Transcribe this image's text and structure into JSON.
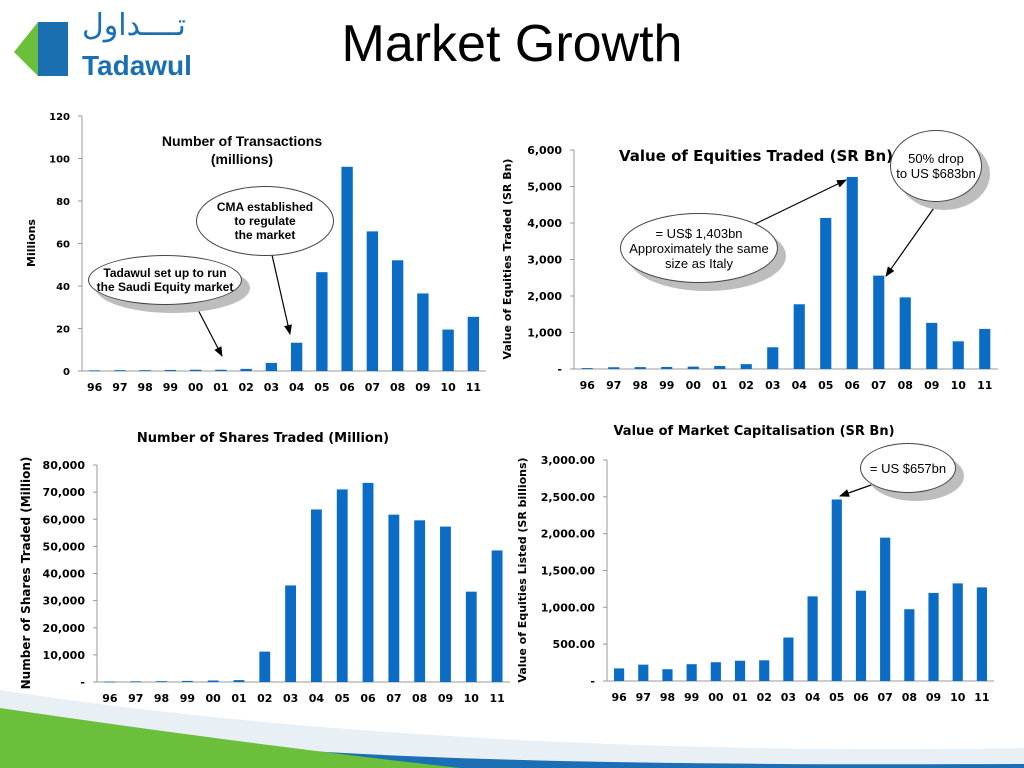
{
  "page_title": "Market Growth",
  "logo": {
    "arabic": "تــــداول",
    "latin": "Tadawul",
    "icon": "tadawul-mark-icon"
  },
  "colors": {
    "bar": "#0a6cc4",
    "axis": "#999999",
    "brand_blue": "#1a6fb0",
    "brand_green": "#6cbf3a",
    "footer_blue": "#1c6fb5"
  },
  "callouts": {
    "tadawul": "Tadawul set up to run\nthe Saudi Equity market",
    "cma": "CMA established\nto regulate\nthe market",
    "italy": "= US$ 1,403bn\nApproximately the same\nsize as Italy",
    "drop": "50% drop\nto US $683bn",
    "cap": "= US $657bn"
  },
  "chart_data": [
    {
      "type": "bar",
      "title": "Number of Transactions\n(millions)",
      "xlabel": "",
      "ylabel": "Millions",
      "categories": [
        "96",
        "97",
        "98",
        "99",
        "00",
        "01",
        "02",
        "03",
        "04",
        "05",
        "06",
        "07",
        "08",
        "09",
        "10",
        "11"
      ],
      "values": [
        0.3,
        0.4,
        0.4,
        0.5,
        0.6,
        0.6,
        1.0,
        3.8,
        13.3,
        46.5,
        96.1,
        65.7,
        52.1,
        36.5,
        19.5,
        25.5
      ],
      "ylim": [
        0,
        120
      ],
      "yticks": [
        0,
        20,
        40,
        60,
        80,
        100,
        120
      ],
      "ytick_labels": [
        "0",
        "20",
        "40",
        "60",
        "80",
        "100",
        "120"
      ],
      "grid": false,
      "legend": "none"
    },
    {
      "type": "bar",
      "title": "Value of Equities Traded (SR Bn)",
      "xlabel": "",
      "ylabel": "Value of Equities Traded (SR Bn)",
      "categories": [
        "96",
        "97",
        "98",
        "99",
        "00",
        "01",
        "02",
        "03",
        "04",
        "05",
        "06",
        "07",
        "08",
        "09",
        "10",
        "11"
      ],
      "values": [
        25,
        48,
        52,
        57,
        65,
        83,
        133,
        596,
        1774,
        4139,
        5262,
        2558,
        1963,
        1264,
        759,
        1099
      ],
      "ylim": [
        0,
        6000
      ],
      "yticks": [
        0,
        1000,
        2000,
        3000,
        4000,
        5000,
        6000
      ],
      "ytick_labels": [
        "-",
        "1,000",
        "2,000",
        "3,000",
        "4,000",
        "5,000",
        "6,000"
      ],
      "grid": false,
      "legend": "none"
    },
    {
      "type": "bar",
      "title": "Number of Shares Traded (Million)",
      "xlabel": "",
      "ylabel": "Number of Shares Traded (Million)",
      "categories": [
        "96",
        "97",
        "98",
        "99",
        "00",
        "01",
        "02",
        "03",
        "04",
        "05",
        "06",
        "07",
        "08",
        "09",
        "10",
        "11"
      ],
      "values": [
        150,
        250,
        300,
        400,
        550,
        700,
        11200,
        35600,
        63600,
        71000,
        73400,
        61700,
        59600,
        57300,
        33300,
        48500
      ],
      "ylim": [
        0,
        80000
      ],
      "yticks": [
        0,
        10000,
        20000,
        30000,
        40000,
        50000,
        60000,
        70000,
        80000
      ],
      "ytick_labels": [
        "-",
        "10,000",
        "20,000",
        "30,000",
        "40,000",
        "50,000",
        "60,000",
        "70,000",
        "80,000"
      ],
      "grid": false,
      "legend": "none"
    },
    {
      "type": "bar",
      "title": "Value of Market Capitalisation (SR Bn)",
      "xlabel": "",
      "ylabel": "Value of Equities Listed (SR billions)",
      "categories": [
        "96",
        "97",
        "98",
        "99",
        "00",
        "01",
        "02",
        "03",
        "04",
        "05",
        "06",
        "07",
        "08",
        "09",
        "10",
        "11"
      ],
      "values": [
        171,
        222,
        160,
        228,
        255,
        275,
        281,
        590,
        1149,
        2464,
        1226,
        1946,
        974,
        1196,
        1325,
        1271
      ],
      "ylim": [
        0,
        3000
      ],
      "yticks": [
        0,
        500,
        1000,
        1500,
        2000,
        2500,
        3000
      ],
      "ytick_labels": [
        "-",
        "500.00",
        "1,000.00",
        "1,500.00",
        "2,000.00",
        "2,500.00",
        "3,000.00"
      ],
      "grid": false,
      "legend": "none"
    }
  ]
}
